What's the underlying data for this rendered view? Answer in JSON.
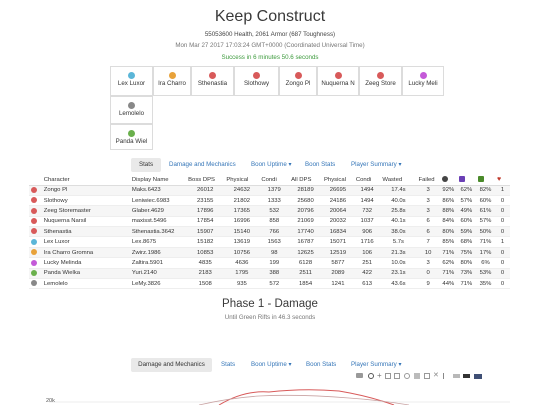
{
  "header": {
    "title": "Keep Construct",
    "stats_line": "55053600 Health, 2061 Armor (687 Toughness)",
    "date_line": "Mon Mar 27 2017 17:03:24 GMT+0000 (Coordinated Universal Time)",
    "result_line": "Success in 6 minutes 50.6 seconds"
  },
  "players": [
    {
      "name": "Lex Luxor",
      "color": "#5bb6d8"
    },
    {
      "name": "Ira Charro",
      "color": "#e8a23a"
    },
    {
      "name": "Sthenastia",
      "color": "#d85a5a"
    },
    {
      "name": "Slothowy",
      "color": "#d85a5a"
    },
    {
      "name": "Zongo Pl",
      "color": "#d85a5a"
    },
    {
      "name": "Nuquerna N",
      "color": "#d85a5a"
    },
    {
      "name": "Zeeg Store",
      "color": "#d85a5a"
    },
    {
      "name": "Lucky Meli",
      "color": "#c45ad8"
    },
    {
      "name": "Lemolelo",
      "color": "#888888"
    },
    {
      "name": "Panda Wiel",
      "color": "#6ab04c"
    }
  ],
  "tabs_main": {
    "stats": "Stats",
    "damage_mechanics": "Damage and Mechanics",
    "boon_uptime": "Boon Uptime ▾",
    "boon_stats": "Boon Stats",
    "player_summary": "Player Summary ▾"
  },
  "table": {
    "headers": [
      "Character",
      "Display Name",
      "Boss DPS",
      "Physical",
      "Condi",
      "All DPS",
      "Physical",
      "Condi",
      "Wasted",
      "Failed"
    ],
    "header_icons": [
      {
        "name": "downed-icon",
        "color": "#444444"
      },
      {
        "name": "quickness-icon",
        "color": "#6a3fb5"
      },
      {
        "name": "might-icon",
        "color": "#4a8a2a"
      },
      {
        "name": "death-icon",
        "color": "#c0392b"
      }
    ],
    "rows": [
      {
        "icon": "#d85a5a",
        "character": "Zongo Pl",
        "display": "Maks.6423",
        "boss_dps": "26012",
        "physical": "24632",
        "condi": "1379",
        "all_dps": "28189",
        "all_physical": "26695",
        "all_condi": "1494",
        "wasted": "17.4s",
        "failed": "3",
        "c1": "92%",
        "c2": "62%",
        "c3": "82%",
        "c4": "1"
      },
      {
        "icon": "#d85a5a",
        "character": "Slothowy",
        "display": "Leniwiec.6983",
        "boss_dps": "23155",
        "physical": "21802",
        "condi": "1333",
        "all_dps": "25680",
        "all_physical": "24186",
        "all_condi": "1494",
        "wasted": "40.0s",
        "failed": "3",
        "c1": "86%",
        "c2": "57%",
        "c3": "60%",
        "c4": "0"
      },
      {
        "icon": "#d85a5a",
        "character": "Zeeg Storemaster",
        "display": "Glaber.4629",
        "boss_dps": "17896",
        "physical": "17365",
        "condi": "532",
        "all_dps": "20796",
        "all_physical": "20064",
        "all_condi": "732",
        "wasted": "25.8s",
        "failed": "3",
        "c1": "88%",
        "c2": "49%",
        "c3": "61%",
        "c4": "0"
      },
      {
        "icon": "#d85a5a",
        "character": "Nuquerna Narsil",
        "display": "maxisst.5496",
        "boss_dps": "17854",
        "physical": "16996",
        "condi": "858",
        "all_dps": "21069",
        "all_physical": "20032",
        "all_condi": "1037",
        "wasted": "40.1s",
        "failed": "6",
        "c1": "84%",
        "c2": "60%",
        "c3": "57%",
        "c4": "0"
      },
      {
        "icon": "#d85a5a",
        "character": "Sthenastia",
        "display": "Sthenastia.3642",
        "boss_dps": "15907",
        "physical": "15140",
        "condi": "766",
        "all_dps": "17740",
        "all_physical": "16834",
        "all_condi": "906",
        "wasted": "38.0s",
        "failed": "6",
        "c1": "80%",
        "c2": "59%",
        "c3": "50%",
        "c4": "0"
      },
      {
        "icon": "#5bb6d8",
        "character": "Lex Luxor",
        "display": "Lex.8675",
        "boss_dps": "15182",
        "physical": "13619",
        "condi": "1563",
        "all_dps": "16787",
        "all_physical": "15071",
        "all_condi": "1716",
        "wasted": "5.7s",
        "failed": "7",
        "c1": "85%",
        "c2": "68%",
        "c3": "71%",
        "c4": "1"
      },
      {
        "icon": "#e8a23a",
        "character": "Ira Charro Gromna",
        "display": "Zwirz.1986",
        "boss_dps": "10853",
        "physical": "10756",
        "condi": "98",
        "all_dps": "12625",
        "all_physical": "12519",
        "all_condi": "106",
        "wasted": "21.3s",
        "failed": "10",
        "c1": "71%",
        "c2": "75%",
        "c3": "17%",
        "c4": "0"
      },
      {
        "icon": "#c45ad8",
        "character": "Lucky Melinda",
        "display": "Zaltira.5901",
        "boss_dps": "4835",
        "physical": "4636",
        "condi": "199",
        "all_dps": "6128",
        "all_physical": "5877",
        "all_condi": "251",
        "wasted": "10.0s",
        "failed": "3",
        "c1": "62%",
        "c2": "80%",
        "c3": "6%",
        "c4": "0"
      },
      {
        "icon": "#6ab04c",
        "character": "Panda Wielka",
        "display": "Yuri.2140",
        "boss_dps": "2183",
        "physical": "1795",
        "condi": "388",
        "all_dps": "2511",
        "all_physical": "2089",
        "all_condi": "422",
        "wasted": "23.1s",
        "failed": "0",
        "c1": "71%",
        "c2": "73%",
        "c3": "53%",
        "c4": "0"
      },
      {
        "icon": "#888888",
        "character": "Lemolelo",
        "display": "LeMy.3826",
        "boss_dps": "1508",
        "physical": "935",
        "condi": "572",
        "all_dps": "1854",
        "all_physical": "1241",
        "all_condi": "613",
        "wasted": "43.6s",
        "failed": "9",
        "c1": "44%",
        "c2": "71%",
        "c3": "35%",
        "c4": "0"
      }
    ]
  },
  "phase": {
    "title": "Phase 1 - Damage",
    "subtitle": "Until Green Rifts in 46.3 seconds"
  },
  "tabs_phase": {
    "damage_mechanics": "Damage and Mechanics",
    "stats": "Stats",
    "boon_uptime": "Boon Uptime ▾",
    "boon_stats": "Boon Stats",
    "player_summary": "Player Summary ▾"
  },
  "chart_data": {
    "type": "line",
    "yticks": [
      "20k"
    ],
    "series_colors": [
      "#d85a5a",
      "#c9a3a3"
    ]
  }
}
